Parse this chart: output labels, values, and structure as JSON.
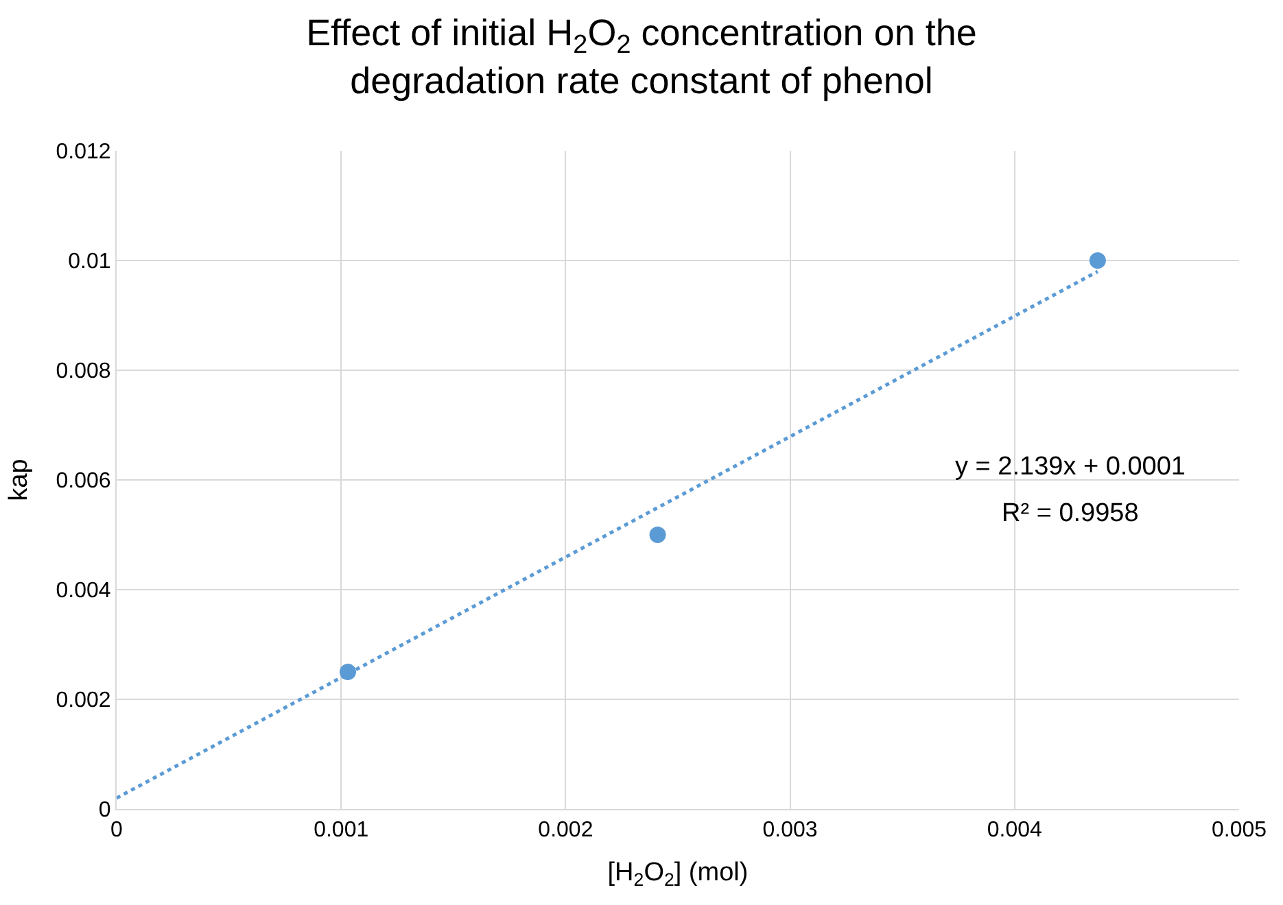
{
  "chart_data": {
    "type": "scatter",
    "title": "Effect of initial H$_{2}$O$_{2}$ concentration on the degradation rate constant of phenol",
    "xlabel": "[H$_{2}$O$_{2}$] (mol)",
    "ylabel": "kap",
    "series": [
      {
        "color": "#5b9bd5",
        "x": [
          0.00103,
          0.00241,
          0.00437
        ],
        "values": [
          0.0025,
          0.005,
          0.01
        ],
        "marker": "circle"
      },
      {
        "type": "line",
        "color": "#5b9bd5",
        "x": [
          0,
          0.00437
        ],
        "values": [
          0.0002,
          0.0098
        ],
        "line_style": "dotted"
      }
    ],
    "annotations": [
      "y = 2.139x + 0.0001",
      "R² = 0.9958"
    ],
    "xlim": [
      0,
      0.005
    ],
    "xticks": [
      0,
      0.001,
      0.002,
      0.003,
      0.004,
      0.005
    ],
    "ylim": [
      0,
      0.012
    ],
    "yticks": [
      0,
      0.002,
      0.004,
      0.006,
      0.008,
      0.01,
      0.012
    ],
    "grid": true
  }
}
